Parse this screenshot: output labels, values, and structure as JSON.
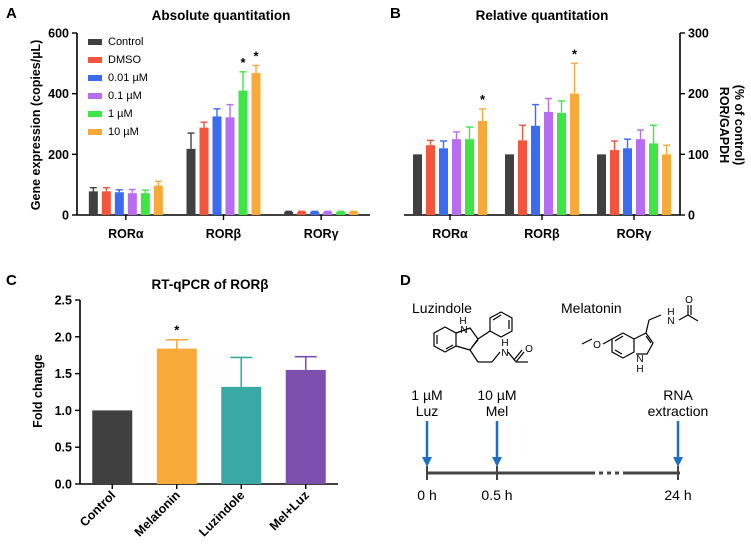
{
  "colors": {
    "Control": "#404040",
    "DMSO": "#f2553c",
    "0.01 µM": "#3a6bf2",
    "0.1 µM": "#b76cf2",
    "1 µM": "#3fe545",
    "10 µM": "#f7a93a",
    "Melatonin": "#f7a93a",
    "Luzindole": "#3aa9a6",
    "Mel+Luz": "#7d4fae",
    "arrow": "#1f6fbf"
  },
  "panels": {
    "A": {
      "letter": "A",
      "chart_data": {
        "type": "bar",
        "title": "Absolute quantitation",
        "ylabel": "Gene expression (copies/µL)",
        "xlabel": "",
        "ylim": [
          0,
          600
        ],
        "yticks": [
          "0",
          "200",
          "400",
          "600"
        ],
        "categories": [
          "RORα",
          "RORβ",
          "RORγ"
        ],
        "series": [
          {
            "name": "Control",
            "values": [
              78,
              218,
              10
            ],
            "errors": [
              12,
              52,
              2
            ]
          },
          {
            "name": "DMSO",
            "values": [
              78,
              288,
              10
            ],
            "errors": [
              12,
              18,
              2
            ]
          },
          {
            "name": "0.01 µM",
            "values": [
              75,
              325,
              10
            ],
            "errors": [
              8,
              25,
              2
            ]
          },
          {
            "name": "0.1 µM",
            "values": [
              72,
              322,
              10
            ],
            "errors": [
              12,
              42,
              2
            ]
          },
          {
            "name": "1 µM",
            "values": [
              72,
              410,
              10
            ],
            "errors": [
              10,
              62,
              2
            ]
          },
          {
            "name": "10 µM",
            "values": [
              97,
              468,
              10
            ],
            "errors": [
              14,
              25,
              2
            ]
          }
        ],
        "significance": [
          {
            "category": 1,
            "series": 4,
            "label": "*"
          },
          {
            "category": 1,
            "series": 5,
            "label": "*"
          }
        ],
        "legend": "top-left"
      }
    },
    "B": {
      "letter": "B",
      "chart_data": {
        "type": "bar",
        "title": "Relative quantitation",
        "ylabel": "ROR/GAPDH",
        "ylabel2": "(% of control)",
        "xlabel": "",
        "ylim": [
          0,
          300
        ],
        "yticks": [
          "0",
          "100",
          "200",
          "300"
        ],
        "categories": [
          "RORα",
          "RORβ",
          "RORγ"
        ],
        "series": [
          {
            "name": "Control",
            "values": [
              100,
              100,
              100
            ],
            "errors": [
              0,
              0,
              0
            ]
          },
          {
            "name": "DMSO",
            "values": [
              115,
              123,
              107
            ],
            "errors": [
              8,
              25,
              15
            ]
          },
          {
            "name": "0.01 µM",
            "values": [
              110,
              147,
              110
            ],
            "errors": [
              12,
              35,
              15
            ]
          },
          {
            "name": "0.1 µM",
            "values": [
              125,
              170,
              125
            ],
            "errors": [
              12,
              22,
              15
            ]
          },
          {
            "name": "1 µM",
            "values": [
              125,
              168,
              118
            ],
            "errors": [
              20,
              20,
              30
            ]
          },
          {
            "name": "10 µM",
            "values": [
              155,
              200,
              100
            ],
            "errors": [
              20,
              50,
              15
            ]
          }
        ],
        "significance": [
          {
            "category": 0,
            "series": 5,
            "label": "*"
          },
          {
            "category": 1,
            "series": 5,
            "label": "*"
          }
        ],
        "axis": "right"
      }
    },
    "C": {
      "letter": "C",
      "chart_data": {
        "type": "bar",
        "title": "RT-qPCR of RORβ",
        "ylabel": "Fold change",
        "xlabel": "",
        "ylim": [
          0,
          2.5
        ],
        "yticks": [
          "0.0",
          "0.5",
          "1.0",
          "1.5",
          "2.0",
          "2.5"
        ],
        "categories": [
          "Control",
          "Melatonin",
          "Luzindole",
          "Mel+Luz"
        ],
        "values": [
          1.0,
          1.84,
          1.32,
          1.55
        ],
        "errors": [
          0,
          0.12,
          0.4,
          0.18
        ],
        "significance": [
          {
            "category": 1,
            "label": "*"
          }
        ]
      }
    },
    "D": {
      "letter": "D",
      "luzindole_label": "Luzindole",
      "melatonin_label": "Melatonin",
      "events": [
        {
          "dose": "1 µM",
          "drug": "Luz",
          "time": "0 h"
        },
        {
          "dose": "10 µM",
          "drug": "Mel",
          "time": "0.5 h"
        },
        {
          "dose": "RNA",
          "drug": "extraction",
          "time": "24 h"
        }
      ],
      "atom_labels": {
        "nh": "H",
        "n": "N",
        "o": "O",
        "luz_nh": "H",
        "luz_n": "N",
        "luz_amide_nh": "H",
        "luz_amide_n": "N",
        "luz_o": "O",
        "mel_o_methoxy": "O",
        "mel_amide_h": "H",
        "mel_amide_n": "N",
        "mel_o": "O",
        "mel_ring_n": "N",
        "mel_ring_h": "H"
      }
    }
  }
}
